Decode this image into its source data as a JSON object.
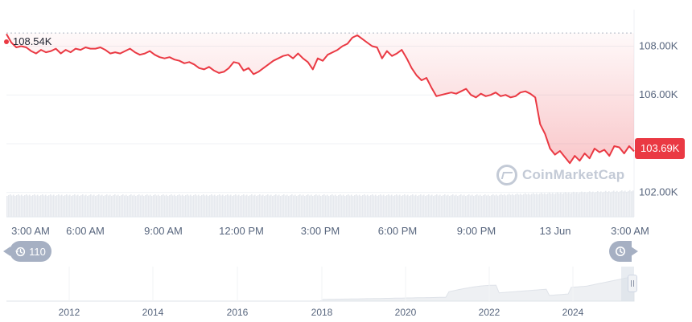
{
  "chart_data": {
    "type": "line",
    "title": "",
    "xlabel": "",
    "ylabel": "",
    "x_ticks": [
      "3:00 AM",
      "6:00 AM",
      "9:00 AM",
      "12:00 PM",
      "3:00 PM",
      "6:00 PM",
      "9:00 PM",
      "13 Jun",
      "3:00 AM"
    ],
    "y_ticks": [
      "108.00K",
      "106.00K",
      "102.00K"
    ],
    "ylim": [
      101000,
      109500
    ],
    "high_label": "108.54K",
    "current_price_label": "103.69K",
    "current_price": 103690,
    "high_value": 108540,
    "series": [
      {
        "values": [
          108500,
          108150,
          107950,
          108000,
          107950,
          107800,
          107700,
          107850,
          107750,
          107800,
          107900,
          107700,
          107850,
          107750,
          107900,
          107850,
          107950,
          107900,
          107900,
          107950,
          107850,
          107700,
          107750,
          107700,
          107800,
          107900,
          107750,
          107650,
          107700,
          107800,
          107650,
          107550,
          107500,
          107550,
          107450,
          107400,
          107300,
          107350,
          107250,
          107100,
          107050,
          107150,
          107000,
          106900,
          106950,
          107100,
          107350,
          107300,
          107000,
          107100,
          106850,
          106950,
          107100,
          107250,
          107400,
          107500,
          107600,
          107650,
          107500,
          107700,
          107500,
          107350,
          107050,
          107500,
          107400,
          107650,
          107750,
          107850,
          108000,
          108100,
          108350,
          108450,
          108300,
          108150,
          108000,
          107950,
          107500,
          107800,
          107600,
          107700,
          107850,
          107500,
          107100,
          106800,
          106600,
          106700,
          106300,
          105950,
          106000,
          106050,
          106100,
          106050,
          106150,
          106250,
          106000,
          105900,
          106050,
          105950,
          106000,
          106100,
          105950,
          106000,
          105900,
          105950,
          106100,
          106150,
          106050,
          105900,
          104800,
          104400,
          103800,
          103550,
          103700,
          103450,
          103200,
          103500,
          103300,
          103600,
          103400,
          103800,
          103650,
          103750,
          103500,
          103900,
          103850,
          103600,
          103900,
          103690
        ]
      }
    ],
    "volume_note": "",
    "navigator": {
      "years": [
        "2012",
        "2014",
        "2016",
        "2018",
        "2020",
        "2022",
        "2024"
      ]
    }
  },
  "controls": {
    "history_label": "110",
    "history_icon": "history-icon",
    "live_icon": "live-icon"
  },
  "watermark": {
    "text": "CoinMarketCap",
    "icon": "coinmarketcap-logo-icon"
  },
  "colors": {
    "line": "#ea3943",
    "badge": "#ea3943",
    "grid": "#eff2f5",
    "volume": "#e6e9ee",
    "axis_text": "#58667e"
  }
}
